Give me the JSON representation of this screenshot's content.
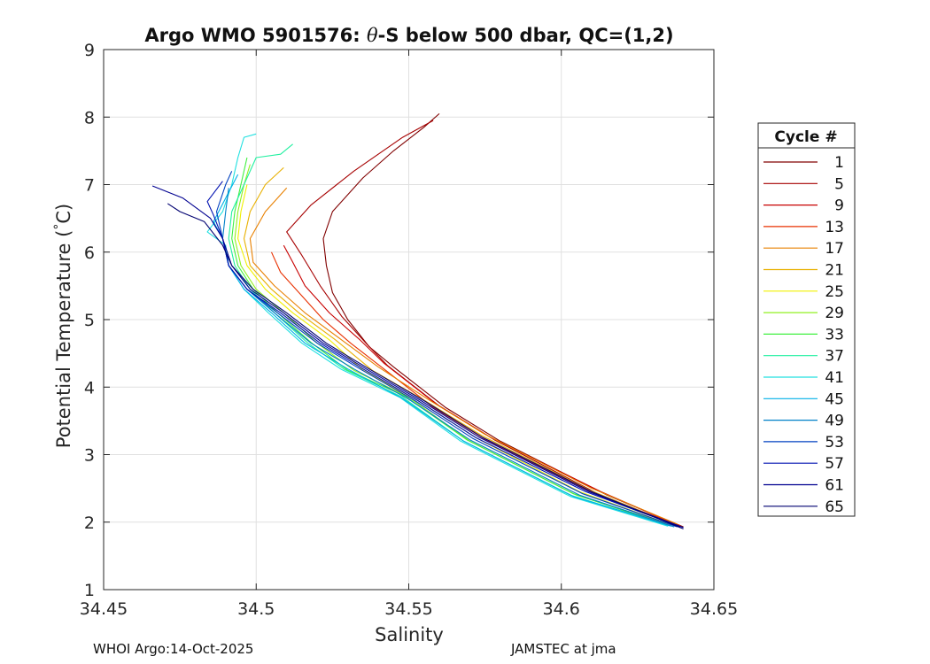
{
  "footer": {
    "left": "WHOI Argo:14-Oct-2025",
    "right": "JAMSTEC at jma"
  },
  "chart_data": {
    "type": "line",
    "title_prefix": "Argo WMO 5901576: ",
    "title_theta": "θ",
    "title_suffix": "-S below 500 dbar,  QC=(1,2)",
    "xlabel": "Salinity",
    "ylabel_text": "Potential Temperature (",
    "ylabel_degree": "°",
    "ylabel_unit": "C)",
    "xlim": [
      34.45,
      34.65
    ],
    "ylim": [
      1,
      9
    ],
    "xticks": [
      34.45,
      34.5,
      34.55,
      34.6,
      34.65
    ],
    "xtick_labels": [
      "34.45",
      "34.5",
      "34.55",
      "34.6",
      "34.65"
    ],
    "yticks": [
      1,
      2,
      3,
      4,
      5,
      6,
      7,
      8,
      9
    ],
    "ytick_labels": [
      "1",
      "2",
      "3",
      "4",
      "5",
      "6",
      "7",
      "8",
      "9"
    ],
    "grid": true,
    "legend": {
      "title": "Cycle #",
      "placement": "right-outside",
      "entries": [
        "1",
        "5",
        "9",
        "13",
        "17",
        "21",
        "25",
        "29",
        "33",
        "37",
        "41",
        "45",
        "49",
        "53",
        "57",
        "61",
        "65"
      ],
      "colors": [
        "#800000",
        "#a60000",
        "#c80000",
        "#e83000",
        "#e88000",
        "#e8b000",
        "#f0f000",
        "#90f020",
        "#40f040",
        "#20f0a0",
        "#20e0e0",
        "#00b0e8",
        "#0080c8",
        "#0040c0",
        "#0010b0",
        "#000090",
        "#000070"
      ]
    },
    "series": [
      {
        "name": "1",
        "color": "#800000",
        "points": [
          [
            34.64,
            1.93
          ],
          [
            34.615,
            2.4
          ],
          [
            34.58,
            3.2
          ],
          [
            34.562,
            3.7
          ],
          [
            34.545,
            4.3
          ],
          [
            34.537,
            4.6
          ],
          [
            34.53,
            5.0
          ],
          [
            34.525,
            5.4
          ],
          [
            34.523,
            5.8
          ],
          [
            34.522,
            6.2
          ],
          [
            34.525,
            6.6
          ],
          [
            34.535,
            7.1
          ],
          [
            34.545,
            7.5
          ],
          [
            34.555,
            7.85
          ],
          [
            34.56,
            8.05
          ]
        ]
      },
      {
        "name": "5",
        "color": "#a60000",
        "points": [
          [
            34.638,
            1.95
          ],
          [
            34.612,
            2.42
          ],
          [
            34.578,
            3.22
          ],
          [
            34.56,
            3.72
          ],
          [
            34.543,
            4.32
          ],
          [
            34.536,
            4.65
          ],
          [
            34.528,
            5.05
          ],
          [
            34.521,
            5.5
          ],
          [
            34.515,
            5.95
          ],
          [
            34.51,
            6.3
          ],
          [
            34.518,
            6.7
          ],
          [
            34.532,
            7.2
          ],
          [
            34.548,
            7.7
          ],
          [
            34.558,
            7.95
          ]
        ]
      },
      {
        "name": "9",
        "color": "#c80000",
        "points": [
          [
            34.639,
            1.94
          ],
          [
            34.613,
            2.45
          ],
          [
            34.577,
            3.25
          ],
          [
            34.559,
            3.75
          ],
          [
            34.542,
            4.35
          ],
          [
            34.534,
            4.7
          ],
          [
            34.524,
            5.1
          ],
          [
            34.516,
            5.5
          ],
          [
            34.512,
            5.85
          ],
          [
            34.509,
            6.1
          ]
        ]
      },
      {
        "name": "13",
        "color": "#e83000",
        "points": [
          [
            34.639,
            1.95
          ],
          [
            34.612,
            2.4
          ],
          [
            34.576,
            3.2
          ],
          [
            34.558,
            3.7
          ],
          [
            34.541,
            4.3
          ],
          [
            34.531,
            4.65
          ],
          [
            34.522,
            5.0
          ],
          [
            34.515,
            5.35
          ],
          [
            34.508,
            5.7
          ],
          [
            34.505,
            6.0
          ]
        ]
      },
      {
        "name": "17",
        "color": "#e88000",
        "points": [
          [
            34.638,
            1.97
          ],
          [
            34.61,
            2.5
          ],
          [
            34.575,
            3.3
          ],
          [
            34.557,
            3.8
          ],
          [
            34.54,
            4.3
          ],
          [
            34.528,
            4.7
          ],
          [
            34.516,
            5.1
          ],
          [
            34.506,
            5.5
          ],
          [
            34.499,
            5.85
          ],
          [
            34.498,
            6.2
          ],
          [
            34.503,
            6.6
          ],
          [
            34.51,
            6.95
          ]
        ]
      },
      {
        "name": "21",
        "color": "#e8b000",
        "points": [
          [
            34.637,
            1.96
          ],
          [
            34.609,
            2.48
          ],
          [
            34.574,
            3.28
          ],
          [
            34.556,
            3.78
          ],
          [
            34.538,
            4.25
          ],
          [
            34.526,
            4.7
          ],
          [
            34.514,
            5.1
          ],
          [
            34.505,
            5.45
          ],
          [
            34.498,
            5.8
          ],
          [
            34.496,
            6.2
          ],
          [
            34.498,
            6.6
          ],
          [
            34.503,
            7.0
          ],
          [
            34.509,
            7.25
          ]
        ]
      },
      {
        "name": "25",
        "color": "#f0f000",
        "points": [
          [
            34.636,
            1.96
          ],
          [
            34.606,
            2.45
          ],
          [
            34.572,
            3.25
          ],
          [
            34.553,
            3.8
          ],
          [
            34.535,
            4.25
          ],
          [
            34.524,
            4.7
          ],
          [
            34.512,
            5.1
          ],
          [
            34.503,
            5.45
          ],
          [
            34.497,
            5.8
          ],
          [
            34.494,
            6.2
          ],
          [
            34.495,
            6.6
          ],
          [
            34.497,
            7.0
          ]
        ]
      },
      {
        "name": "29",
        "color": "#90f020",
        "points": [
          [
            34.636,
            1.96
          ],
          [
            34.605,
            2.4
          ],
          [
            34.57,
            3.2
          ],
          [
            34.55,
            3.85
          ],
          [
            34.532,
            4.25
          ],
          [
            34.52,
            4.65
          ],
          [
            34.509,
            5.1
          ],
          [
            34.5,
            5.45
          ],
          [
            34.495,
            5.8
          ],
          [
            34.493,
            6.2
          ],
          [
            34.494,
            6.6
          ],
          [
            34.496,
            7.0
          ],
          [
            34.498,
            7.3
          ]
        ]
      },
      {
        "name": "33",
        "color": "#40f040",
        "points": [
          [
            34.635,
            1.95
          ],
          [
            34.604,
            2.42
          ],
          [
            34.569,
            3.22
          ],
          [
            34.549,
            3.86
          ],
          [
            34.53,
            4.25
          ],
          [
            34.518,
            4.66
          ],
          [
            34.507,
            5.1
          ],
          [
            34.499,
            5.45
          ],
          [
            34.494,
            5.8
          ],
          [
            34.492,
            6.2
          ],
          [
            34.493,
            6.6
          ],
          [
            34.495,
            7.0
          ],
          [
            34.497,
            7.4
          ]
        ]
      },
      {
        "name": "37",
        "color": "#20f0a0",
        "points": [
          [
            34.635,
            1.95
          ],
          [
            34.603,
            2.4
          ],
          [
            34.568,
            3.2
          ],
          [
            34.548,
            3.85
          ],
          [
            34.529,
            4.26
          ],
          [
            34.517,
            4.65
          ],
          [
            34.506,
            5.1
          ],
          [
            34.498,
            5.45
          ],
          [
            34.493,
            5.8
          ],
          [
            34.491,
            6.2
          ],
          [
            34.492,
            6.6
          ],
          [
            34.496,
            7.0
          ],
          [
            34.5,
            7.4
          ],
          [
            34.508,
            7.45
          ],
          [
            34.512,
            7.6
          ]
        ]
      },
      {
        "name": "41",
        "color": "#20e0e0",
        "points": [
          [
            34.635,
            1.94
          ],
          [
            34.603,
            2.38
          ],
          [
            34.567,
            3.2
          ],
          [
            34.547,
            3.85
          ],
          [
            34.528,
            4.26
          ],
          [
            34.515,
            4.65
          ],
          [
            34.504,
            5.1
          ],
          [
            34.496,
            5.45
          ],
          [
            34.491,
            5.8
          ],
          [
            34.49,
            6.1
          ],
          [
            34.484,
            6.3
          ],
          [
            34.489,
            6.6
          ],
          [
            34.492,
            7.0
          ],
          [
            34.494,
            7.4
          ],
          [
            34.496,
            7.7
          ],
          [
            34.5,
            7.75
          ]
        ]
      },
      {
        "name": "45",
        "color": "#00b0e8",
        "points": [
          [
            34.636,
            1.94
          ],
          [
            34.604,
            2.38
          ],
          [
            34.568,
            3.2
          ],
          [
            34.548,
            3.83
          ],
          [
            34.53,
            4.27
          ],
          [
            34.516,
            4.65
          ],
          [
            34.505,
            5.1
          ],
          [
            34.496,
            5.45
          ],
          [
            34.491,
            5.8
          ],
          [
            34.489,
            6.2
          ],
          [
            34.486,
            6.45
          ],
          [
            34.49,
            6.8
          ],
          [
            34.494,
            7.15
          ]
        ]
      },
      {
        "name": "49",
        "color": "#0080c8",
        "points": [
          [
            34.637,
            1.93
          ],
          [
            34.606,
            2.4
          ],
          [
            34.57,
            3.22
          ],
          [
            34.55,
            3.82
          ],
          [
            34.532,
            4.27
          ],
          [
            34.518,
            4.65
          ],
          [
            34.506,
            5.1
          ],
          [
            34.497,
            5.45
          ],
          [
            34.491,
            5.8
          ],
          [
            34.489,
            6.2
          ],
          [
            34.49,
            6.6
          ],
          [
            34.491,
            6.95
          ]
        ]
      },
      {
        "name": "53",
        "color": "#0040c0",
        "points": [
          [
            34.638,
            1.93
          ],
          [
            34.607,
            2.42
          ],
          [
            34.571,
            3.24
          ],
          [
            34.552,
            3.8
          ],
          [
            34.534,
            4.27
          ],
          [
            34.52,
            4.65
          ],
          [
            34.507,
            5.1
          ],
          [
            34.497,
            5.45
          ],
          [
            34.491,
            5.8
          ],
          [
            34.489,
            6.2
          ],
          [
            34.487,
            6.6
          ],
          [
            34.49,
            7.0
          ],
          [
            34.492,
            7.2
          ]
        ]
      },
      {
        "name": "57",
        "color": "#0010b0",
        "points": [
          [
            34.639,
            1.93
          ],
          [
            34.608,
            2.45
          ],
          [
            34.572,
            3.25
          ],
          [
            34.553,
            3.8
          ],
          [
            34.535,
            4.27
          ],
          [
            34.521,
            4.65
          ],
          [
            34.508,
            5.1
          ],
          [
            34.497,
            5.45
          ],
          [
            34.491,
            5.8
          ],
          [
            34.489,
            6.2
          ],
          [
            34.486,
            6.55
          ],
          [
            34.484,
            6.75
          ],
          [
            34.489,
            7.05
          ]
        ]
      },
      {
        "name": "61",
        "color": "#000090",
        "points": [
          [
            34.64,
            1.92
          ],
          [
            34.609,
            2.45
          ],
          [
            34.573,
            3.26
          ],
          [
            34.554,
            3.8
          ],
          [
            34.536,
            4.27
          ],
          [
            34.522,
            4.65
          ],
          [
            34.509,
            5.1
          ],
          [
            34.498,
            5.45
          ],
          [
            34.492,
            5.8
          ],
          [
            34.489,
            6.2
          ],
          [
            34.485,
            6.5
          ],
          [
            34.476,
            6.8
          ],
          [
            34.466,
            6.98
          ]
        ]
      },
      {
        "name": "65",
        "color": "#000070",
        "points": [
          [
            34.64,
            1.9
          ],
          [
            34.61,
            2.45
          ],
          [
            34.574,
            3.26
          ],
          [
            34.555,
            3.8
          ],
          [
            34.537,
            4.27
          ],
          [
            34.523,
            4.65
          ],
          [
            34.51,
            5.1
          ],
          [
            34.499,
            5.45
          ],
          [
            34.492,
            5.8
          ],
          [
            34.489,
            6.1
          ],
          [
            34.483,
            6.45
          ],
          [
            34.475,
            6.6
          ],
          [
            34.471,
            6.72
          ]
        ]
      }
    ]
  }
}
